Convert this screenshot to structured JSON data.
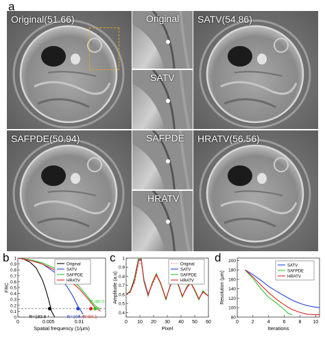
{
  "panel_a": {
    "letter": "a",
    "tiles": [
      {
        "label": "Original(51.66)"
      },
      {
        "label": "SATV(54.86)"
      },
      {
        "label": "SAFPDE(50.94)"
      },
      {
        "label": "HRATV(56.56)"
      }
    ],
    "zoom_tiles": [
      {
        "label": "Original"
      },
      {
        "label": "SATV"
      },
      {
        "label": "SAFPDE"
      },
      {
        "label": "HRATV"
      }
    ],
    "roi_color": "#f0a020"
  },
  "panel_b": {
    "letter": "b"
  },
  "panel_c": {
    "letter": "c"
  },
  "panel_d": {
    "letter": "d"
  },
  "chart_data": [
    {
      "type": "line",
      "xlabel": "Spatial frequency (1/μm)",
      "ylabel": "FRC",
      "xlim": [
        0,
        0.0143
      ],
      "ylim": [
        0,
        1.0
      ],
      "xticks": [
        "0",
        "0.005",
        "0.01"
      ],
      "yticks": [
        "0",
        "0.1",
        "0.2",
        "0.3",
        "0.4",
        "0.5",
        "0.6",
        "0.7",
        "0.8",
        "0.9",
        "1"
      ],
      "threshold": 0.143,
      "legend": [
        "Original",
        "SATV",
        "SAFPDE",
        "HRATV"
      ],
      "series": [
        {
          "name": "Original",
          "color": "#000000",
          "x": [
            0,
            0.001,
            0.002,
            0.003,
            0.004,
            0.0045,
            0.005,
            0.0055,
            0.006
          ],
          "y": [
            1.0,
            0.98,
            0.93,
            0.83,
            0.63,
            0.48,
            0.3,
            0.1,
            0.0
          ]
        },
        {
          "name": "SATV",
          "color": "#1f3ed8",
          "x": [
            0,
            0.002,
            0.004,
            0.006,
            0.008,
            0.009,
            0.0097,
            0.0102,
            0.0106
          ],
          "y": [
            1.0,
            0.97,
            0.9,
            0.76,
            0.52,
            0.35,
            0.2,
            0.12,
            0.05
          ]
        },
        {
          "name": "SAFPDE",
          "color": "#22cc22",
          "x": [
            0,
            0.002,
            0.004,
            0.006,
            0.008,
            0.01,
            0.0115,
            0.0125,
            0.0135
          ],
          "y": [
            1.0,
            0.97,
            0.92,
            0.83,
            0.7,
            0.52,
            0.33,
            0.2,
            0.13
          ]
        },
        {
          "name": "HRATV",
          "color": "#e02020",
          "x": [
            0,
            0.002,
            0.004,
            0.006,
            0.008,
            0.01,
            0.0115,
            0.0125,
            0.0135
          ],
          "y": [
            1.0,
            0.96,
            0.9,
            0.8,
            0.66,
            0.48,
            0.3,
            0.17,
            0.1
          ]
        }
      ],
      "markers": [
        {
          "x": 0.0052,
          "y": 0.143,
          "color": "#000000",
          "label": "R=183.8"
        },
        {
          "x": 0.0098,
          "y": 0.143,
          "color": "#1f3ed8",
          "label": "R=100.4"
        },
        {
          "x": 0.0126,
          "y": 0.143,
          "color": "#22cc22",
          "label": "R=80.0"
        },
        {
          "x": 0.0119,
          "y": 0.143,
          "color": "#e02020",
          "label": "R=84.1"
        }
      ]
    },
    {
      "type": "line",
      "xlabel": "Pixel",
      "ylabel": "Amplitude (a.u)",
      "xlim": [
        0,
        60
      ],
      "ylim": [
        0.35,
        1.0
      ],
      "xticks": [
        "0",
        "10",
        "20",
        "30",
        "40",
        "50",
        "60"
      ],
      "yticks": [
        "0.4",
        "0.5",
        "0.6",
        "0.7",
        "0.8",
        "0.9",
        "1"
      ],
      "legend": [
        "Original",
        "SATV",
        "SAFPDE",
        "HRATV"
      ],
      "series": [
        {
          "name": "Original",
          "color": "#f08080",
          "dashed": true,
          "x": [
            0,
            3,
            6,
            9,
            11,
            13,
            16,
            19,
            22,
            25,
            29,
            32,
            35,
            38,
            41,
            44,
            47,
            50,
            53,
            56,
            60
          ],
          "y": [
            0.6,
            0.62,
            0.72,
            0.93,
            0.95,
            0.75,
            0.6,
            0.7,
            0.8,
            0.72,
            0.55,
            0.68,
            0.8,
            0.7,
            0.58,
            0.66,
            0.72,
            0.64,
            0.55,
            0.62,
            0.58
          ]
        },
        {
          "name": "SATV",
          "color": "#1f3ed8",
          "x": [
            0,
            3,
            6,
            9,
            11,
            13,
            16,
            19,
            22,
            25,
            29,
            32,
            35,
            38,
            41,
            44,
            47,
            50,
            53,
            56,
            60
          ],
          "y": [
            0.6,
            0.63,
            0.75,
            0.97,
            0.98,
            0.76,
            0.6,
            0.72,
            0.82,
            0.73,
            0.55,
            0.69,
            0.8,
            0.71,
            0.58,
            0.67,
            0.73,
            0.65,
            0.55,
            0.63,
            0.58
          ]
        },
        {
          "name": "SAFPDE",
          "color": "#22cc22",
          "x": [
            0,
            3,
            6,
            9,
            11,
            13,
            16,
            19,
            22,
            25,
            29,
            32,
            35,
            38,
            41,
            44,
            47,
            50,
            53,
            56,
            60
          ],
          "y": [
            0.6,
            0.64,
            0.78,
            1.0,
            0.98,
            0.74,
            0.58,
            0.73,
            0.83,
            0.72,
            0.54,
            0.7,
            0.81,
            0.7,
            0.57,
            0.68,
            0.74,
            0.64,
            0.54,
            0.64,
            0.58
          ]
        },
        {
          "name": "HRATV",
          "color": "#e02020",
          "x": [
            0,
            3,
            6,
            9,
            11,
            13,
            16,
            19,
            22,
            25,
            29,
            32,
            35,
            38,
            41,
            44,
            47,
            50,
            53,
            56,
            60
          ],
          "y": [
            0.6,
            0.63,
            0.76,
            0.98,
            0.99,
            0.75,
            0.59,
            0.72,
            0.82,
            0.73,
            0.55,
            0.69,
            0.81,
            0.71,
            0.58,
            0.67,
            0.73,
            0.65,
            0.55,
            0.63,
            0.58
          ]
        }
      ]
    },
    {
      "type": "line",
      "xlabel": "Iterations",
      "ylabel": "Resolution (μm)",
      "xlim": [
        0,
        10.5
      ],
      "ylim": [
        80,
        205
      ],
      "xticks": [
        "0",
        "2",
        "4",
        "6",
        "8",
        "10"
      ],
      "yticks": [
        "80",
        "100",
        "120",
        "140",
        "160",
        "180",
        "200"
      ],
      "legend": [
        "SATV",
        "SAFPDE",
        "HRATV"
      ],
      "series": [
        {
          "name": "SATV",
          "color": "#1f3ed8",
          "x": [
            1,
            2,
            3,
            4,
            5,
            6,
            7,
            8,
            9,
            10,
            10.5
          ],
          "y": [
            180,
            170,
            158,
            145,
            135,
            125,
            116,
            109,
            104,
            101,
            100
          ]
        },
        {
          "name": "SAFPDE",
          "color": "#22cc22",
          "x": [
            1,
            2,
            3,
            4,
            5,
            6,
            6.5,
            7
          ],
          "y": [
            180,
            162,
            140,
            122,
            110,
            96,
            88,
            85
          ]
        },
        {
          "name": "HRATV",
          "color": "#e02020",
          "x": [
            1,
            2,
            3,
            4,
            5,
            6,
            7,
            8,
            9,
            10,
            10.5
          ],
          "y": [
            180,
            165,
            148,
            132,
            118,
            106,
            96,
            90,
            86,
            85,
            85
          ]
        }
      ]
    }
  ]
}
